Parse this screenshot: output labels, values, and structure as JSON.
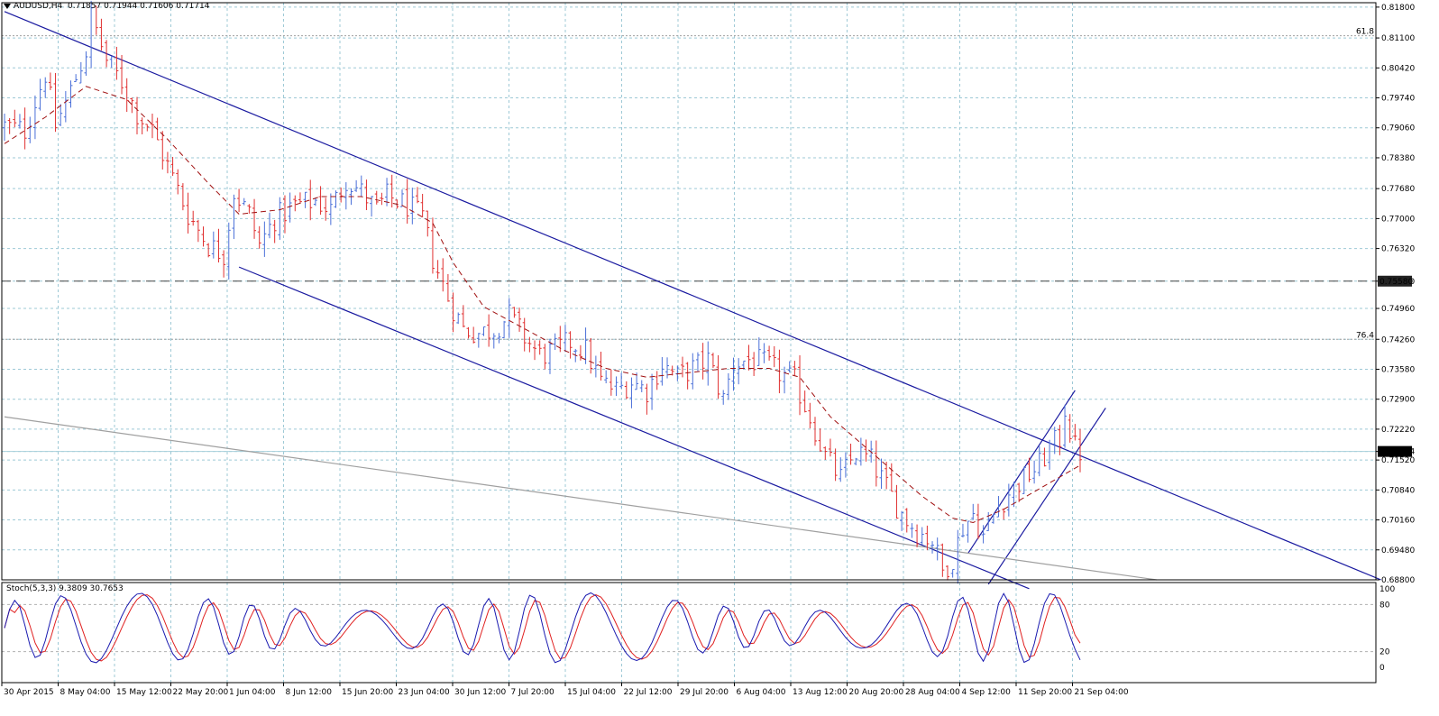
{
  "header": {
    "symbol": "AUDUSD,H4",
    "ohlc": "0.71857 0.71944 0.71606 0.71714"
  },
  "indicator": {
    "label": "Stoch(5,3,3) 9.3809 30.7653"
  },
  "colors": {
    "grid": "#9ec9d6",
    "bull": "#4a6fd8",
    "bear": "#e03030",
    "ma": "#a01010",
    "channel": "#1a1aa0",
    "stoch_main": "#1a1ab0",
    "stoch_signal": "#e02020"
  },
  "chart_data": [
    {
      "type": "candlestick",
      "symbol": "AUDUSD",
      "timeframe": "H4",
      "ylim": [
        0.688,
        0.819
      ],
      "y_ticks": [
        "0.81800",
        "0.81100",
        "0.80420",
        "0.79740",
        "0.79060",
        "0.78380",
        "0.77680",
        "0.77000",
        "0.76320",
        "0.75580",
        "0.74960",
        "0.74260",
        "0.73580",
        "0.72900",
        "0.72220",
        "0.71714",
        "0.71520",
        "0.70840",
        "0.70160",
        "0.69480",
        "0.68800"
      ],
      "x_ticks": [
        "30 Apr 2015",
        "8 May 04:00",
        "15 May 12:00",
        "22 May 20:00",
        "1 Jun 04:00",
        "8 Jun 12:00",
        "15 Jun 20:00",
        "23 Jun 04:00",
        "30 Jun 12:00",
        "7 Jul 20:00",
        "15 Jul 04:00",
        "22 Jul 12:00",
        "29 Jul 20:00",
        "6 Aug 04:00",
        "13 Aug 12:00",
        "20 Aug 20:00",
        "28 Aug 04:00",
        "4 Sep 12:00",
        "11 Sep 20:00",
        "21 Sep 04:00"
      ],
      "current_price": "0.71714",
      "horizontal_level": "0.75580",
      "fib_labels": [
        {
          "text": "61.8",
          "price": 0.8115
        },
        {
          "text": "76.4",
          "price": 0.7426
        }
      ],
      "close_path": [
        [
          0,
          0.791
        ],
        [
          4,
          0.79
        ],
        [
          8,
          0.803
        ],
        [
          10,
          0.791
        ],
        [
          13,
          0.799
        ],
        [
          16,
          0.808
        ],
        [
          17,
          0.816
        ],
        [
          20,
          0.806
        ],
        [
          23,
          0.801
        ],
        [
          26,
          0.794
        ],
        [
          29,
          0.79
        ],
        [
          32,
          0.782
        ],
        [
          36,
          0.771
        ],
        [
          40,
          0.764
        ],
        [
          43,
          0.762
        ],
        [
          45,
          0.776
        ],
        [
          48,
          0.771
        ],
        [
          50,
          0.764
        ],
        [
          53,
          0.77
        ],
        [
          57,
          0.773
        ],
        [
          61,
          0.774
        ],
        [
          64,
          0.772
        ],
        [
          67,
          0.779
        ],
        [
          70,
          0.776
        ],
        [
          73,
          0.772
        ],
        [
          75,
          0.775
        ],
        [
          79,
          0.773
        ],
        [
          82,
          0.77
        ],
        [
          84,
          0.761
        ],
        [
          87,
          0.752
        ],
        [
          90,
          0.745
        ],
        [
          93,
          0.744
        ],
        [
          96,
          0.745
        ],
        [
          99,
          0.748
        ],
        [
          102,
          0.743
        ],
        [
          105,
          0.739
        ],
        [
          108,
          0.74
        ],
        [
          111,
          0.742
        ],
        [
          114,
          0.74
        ],
        [
          117,
          0.733
        ],
        [
          120,
          0.731
        ],
        [
          123,
          0.733
        ],
        [
          126,
          0.731
        ],
        [
          129,
          0.737
        ],
        [
          132,
          0.734
        ],
        [
          135,
          0.736
        ],
        [
          138,
          0.738
        ],
        [
          141,
          0.729
        ],
        [
          143,
          0.737
        ],
        [
          146,
          0.738
        ],
        [
          149,
          0.737
        ],
        [
          152,
          0.735
        ],
        [
          155,
          0.733
        ],
        [
          158,
          0.725
        ],
        [
          161,
          0.716
        ],
        [
          164,
          0.711
        ],
        [
          167,
          0.717
        ],
        [
          170,
          0.715
        ],
        [
          173,
          0.709
        ],
        [
          176,
          0.703
        ],
        [
          179,
          0.699
        ],
        [
          182,
          0.697
        ],
        [
          184,
          0.69
        ],
        [
          186,
          0.693
        ],
        [
          188,
          0.7
        ],
        [
          190,
          0.703
        ],
        [
          192,
          0.698
        ],
        [
          195,
          0.705
        ],
        [
          198,
          0.709
        ],
        [
          201,
          0.712
        ],
        [
          203,
          0.714
        ],
        [
          205,
          0.718
        ],
        [
          207,
          0.72
        ],
        [
          208,
          0.727
        ],
        [
          209,
          0.722
        ],
        [
          210,
          0.718
        ],
        [
          211,
          0.7171
        ]
      ],
      "moving_average": [
        [
          0,
          0.787
        ],
        [
          8,
          0.793
        ],
        [
          16,
          0.8
        ],
        [
          24,
          0.797
        ],
        [
          32,
          0.788
        ],
        [
          40,
          0.778
        ],
        [
          46,
          0.771
        ],
        [
          54,
          0.772
        ],
        [
          62,
          0.775
        ],
        [
          70,
          0.775
        ],
        [
          78,
          0.773
        ],
        [
          84,
          0.769
        ],
        [
          88,
          0.76
        ],
        [
          94,
          0.75
        ],
        [
          102,
          0.745
        ],
        [
          110,
          0.74
        ],
        [
          118,
          0.736
        ],
        [
          126,
          0.734
        ],
        [
          134,
          0.735
        ],
        [
          142,
          0.736
        ],
        [
          150,
          0.736
        ],
        [
          156,
          0.734
        ],
        [
          162,
          0.725
        ],
        [
          168,
          0.719
        ],
        [
          174,
          0.713
        ],
        [
          180,
          0.707
        ],
        [
          186,
          0.702
        ],
        [
          190,
          0.701
        ],
        [
          196,
          0.704
        ],
        [
          202,
          0.708
        ],
        [
          208,
          0.712
        ],
        [
          211,
          0.714
        ]
      ],
      "channels": [
        {
          "from": [
            0,
            0.817
          ],
          "to": [
            270,
            0.688
          ]
        },
        {
          "from": [
            46,
            0.759
          ],
          "to": [
            201,
            0.686
          ]
        },
        {
          "from": [
            189,
            0.694
          ],
          "to": [
            210,
            0.731
          ]
        },
        {
          "from": [
            193,
            0.687
          ],
          "to": [
            216,
            0.727
          ]
        },
        {
          "from": [
            0,
            0.725
          ],
          "to": [
            226,
            0.688
          ]
        }
      ]
    },
    {
      "type": "line",
      "name": "Stoch(5,3,3)",
      "ylim": [
        0,
        100
      ],
      "y_ticks": [
        "100",
        "80",
        "20",
        "0"
      ],
      "levels": [
        80,
        20
      ],
      "main_value": 9.3809,
      "signal_value": 30.7653
    }
  ]
}
